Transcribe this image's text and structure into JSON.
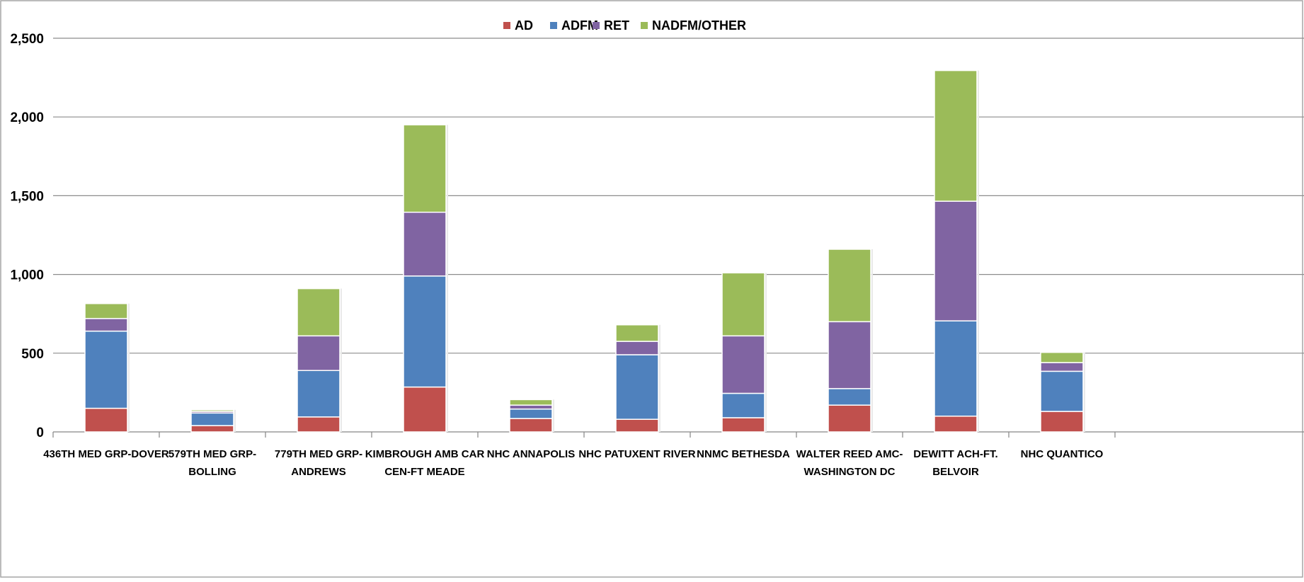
{
  "chart_data": {
    "type": "bar",
    "stacked": true,
    "title": "",
    "xlabel": "",
    "ylabel": "",
    "ylim": [
      0,
      2500
    ],
    "yticks": [
      0,
      500,
      1000,
      1500,
      2000,
      2500
    ],
    "ytick_labels": [
      "0",
      "500",
      "1,000",
      "1,500",
      "2,000",
      "2,500"
    ],
    "grid": "horizontal",
    "legend_position": "top-center",
    "categories": [
      [
        "436TH MED GRP-DOVER"
      ],
      [
        "579TH MED GRP-",
        "BOLLING"
      ],
      [
        "779TH MED GRP-",
        "ANDREWS"
      ],
      [
        "KIMBROUGH AMB CAR",
        "CEN-FT MEADE"
      ],
      [
        "NHC ANNAPOLIS"
      ],
      [
        "NHC PATUXENT RIVER"
      ],
      [
        "NNMC BETHESDA"
      ],
      [
        "WALTER REED  AMC-",
        "WASHINGTON DC"
      ],
      [
        "DEWITT ACH-FT.",
        "BELVOIR"
      ],
      [
        "NHC QUANTICO"
      ]
    ],
    "series": [
      {
        "name": "AD",
        "color": "#c0504d",
        "values": [
          150,
          40,
          95,
          285,
          85,
          80,
          90,
          170,
          100,
          130
        ]
      },
      {
        "name": "ADFM",
        "color": "#4f81bd",
        "values": [
          490,
          80,
          295,
          705,
          60,
          410,
          155,
          105,
          605,
          255
        ]
      },
      {
        "name": "RET",
        "color": "#8064a2",
        "values": [
          80,
          10,
          220,
          405,
          25,
          85,
          365,
          425,
          760,
          55
        ]
      },
      {
        "name": "NADFM/OTHER",
        "color": "#9bbb59",
        "values": [
          95,
          10,
          300,
          555,
          35,
          105,
          400,
          460,
          830,
          65
        ]
      }
    ]
  }
}
